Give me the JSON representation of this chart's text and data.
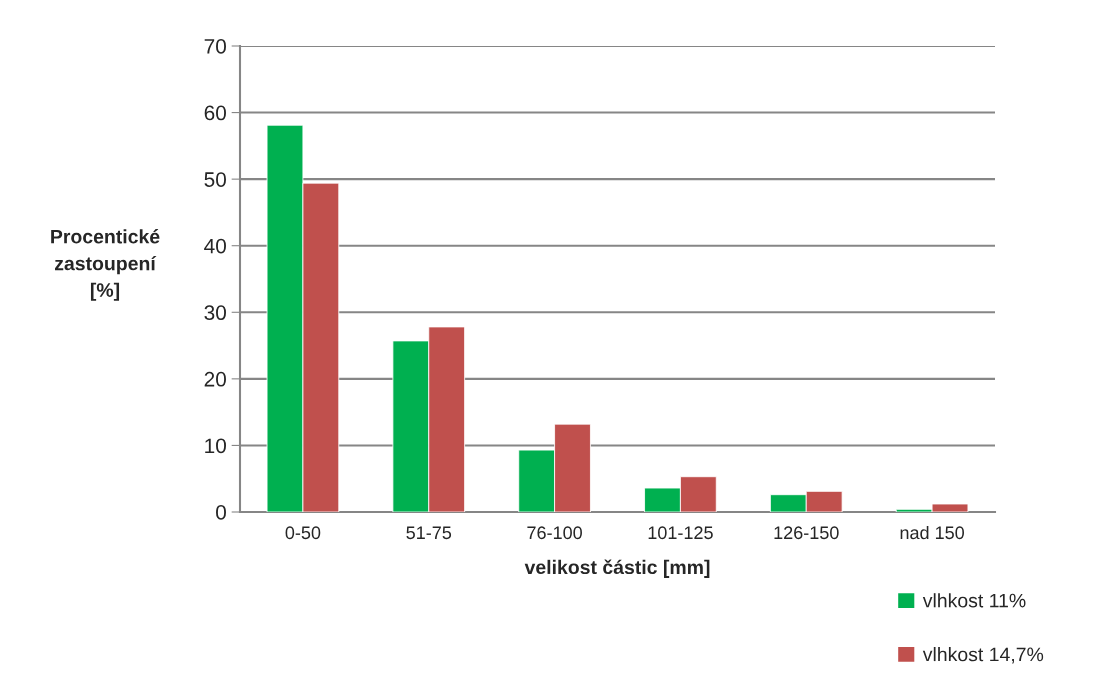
{
  "chart_data": {
    "type": "bar",
    "xlabel": "velikost částic [mm]",
    "ylabel": "Procentické\nzastoupení\n[%]",
    "categories": [
      "0-50",
      "51-75",
      "76-100",
      "101-125",
      "126-150",
      "nad 150"
    ],
    "series": [
      {
        "name": "vlhkost 11%",
        "color": "#00b050",
        "values": [
          58.1,
          25.7,
          9.3,
          3.6,
          2.6,
          0.4
        ]
      },
      {
        "name": "vlhkost 14,7%",
        "color": "#c0504d",
        "values": [
          49.4,
          27.8,
          13.2,
          5.3,
          3.1,
          1.2
        ]
      }
    ],
    "ylim": [
      0,
      70
    ],
    "yticks": [
      0,
      10,
      20,
      30,
      40,
      50,
      60,
      70
    ],
    "grid": "y",
    "legend": "bottom right"
  }
}
